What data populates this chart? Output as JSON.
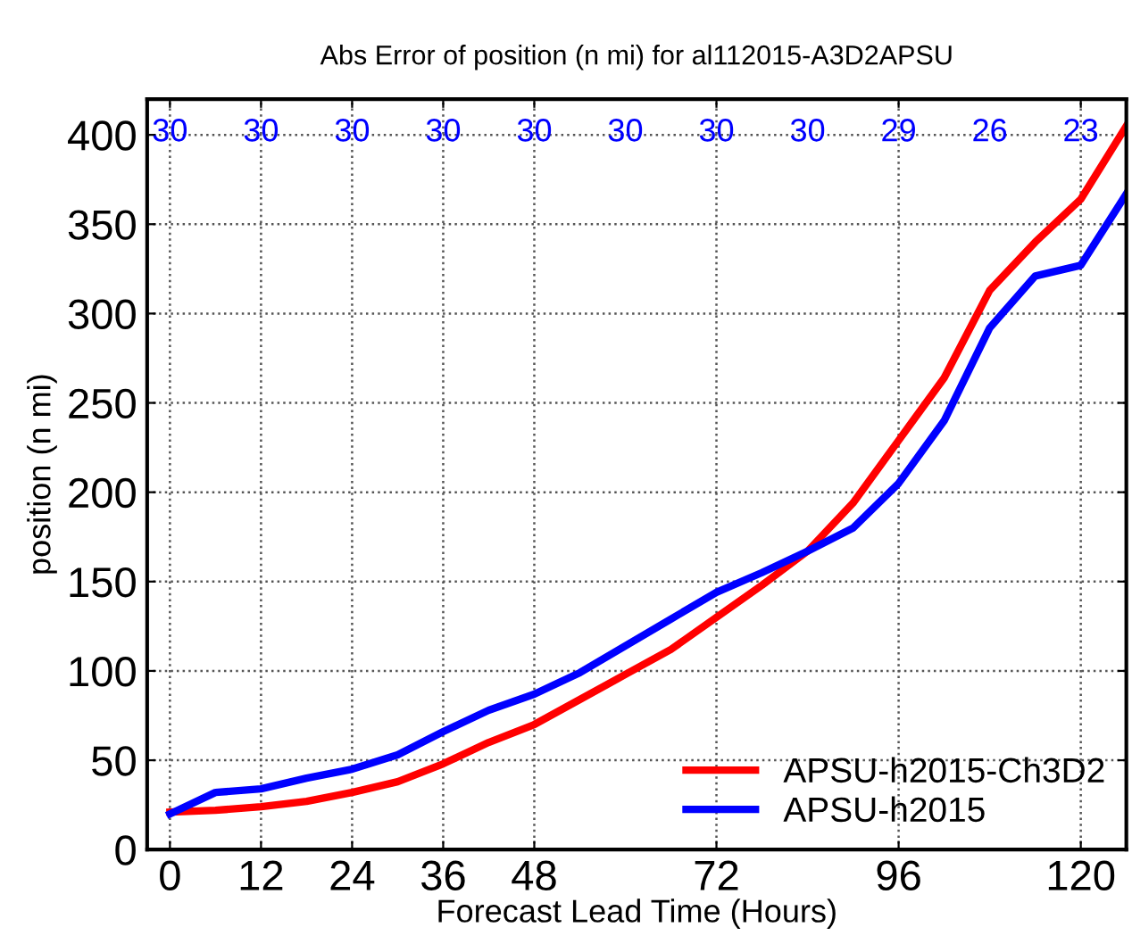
{
  "chart_data": {
    "type": "line",
    "title": "Abs Error of position (n mi) for al112015-A3D2APSU",
    "xlabel": "Forecast Lead Time (Hours)",
    "ylabel": "position (n mi)",
    "x": [
      0,
      6,
      12,
      18,
      24,
      30,
      36,
      42,
      48,
      54,
      60,
      66,
      72,
      78,
      84,
      90,
      96,
      102,
      108,
      114,
      120,
      126
    ],
    "series": [
      {
        "name": "APSU-h2015-Ch3D2",
        "color": "#ff0000",
        "values": [
          21,
          22,
          24,
          27,
          32,
          38,
          48,
          60,
          70,
          84,
          98,
          112,
          130,
          148,
          167,
          194,
          229,
          264,
          313,
          340,
          364,
          405
        ]
      },
      {
        "name": "APSU-h2015",
        "color": "#0000ff",
        "values": [
          20,
          32,
          34,
          40,
          45,
          53,
          66,
          78,
          87,
          99,
          114,
          129,
          144,
          155,
          167,
          180,
          205,
          240,
          292,
          321,
          327,
          367
        ]
      }
    ],
    "xlim": [
      -3,
      126
    ],
    "ylim": [
      0,
      420
    ],
    "xticks": [
      0,
      12,
      24,
      36,
      48,
      72,
      96,
      120
    ],
    "yticks": [
      0,
      50,
      100,
      150,
      200,
      250,
      300,
      350,
      400
    ],
    "grid": true,
    "legend": "bottom right",
    "marker": "none",
    "line_style": "solid",
    "annotations": [
      "30",
      "30",
      "30",
      "30",
      "30",
      "30",
      "30",
      "30",
      "29",
      "26",
      "23"
    ]
  }
}
